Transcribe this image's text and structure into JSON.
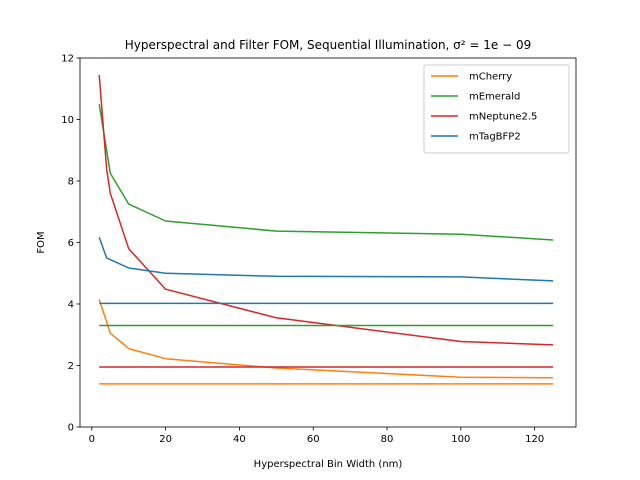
{
  "chart_data": {
    "type": "line",
    "title": "Hyperspectral and Filter FOM, Sequential Illumination, σ² = 1e − 09",
    "xlabel": "Hyperspectral Bin Width (nm)",
    "ylabel": "FOM",
    "xlim": [
      -3.2,
      131.2
    ],
    "ylim": [
      0,
      12
    ],
    "xticks": [
      0,
      20,
      40,
      60,
      80,
      100,
      120
    ],
    "yticks": [
      0,
      2,
      4,
      6,
      8,
      10,
      12
    ],
    "grid": false,
    "legend_position": "top-right",
    "colors": {
      "mCherry": "#ff7f0e",
      "mEmerald": "#2ca02c",
      "mNeptune2.5": "#d62728",
      "mTagBFP2": "#1f77b4"
    },
    "series": [
      {
        "name": "mCherry",
        "color": "#ff7f0e",
        "legend": true,
        "x": [
          2,
          5,
          10,
          20,
          50,
          100,
          125
        ],
        "y": [
          4.15,
          3.05,
          2.55,
          2.22,
          1.92,
          1.62,
          1.6
        ]
      },
      {
        "name": "mEmerald",
        "color": "#2ca02c",
        "legend": true,
        "x": [
          2,
          5,
          10,
          20,
          50,
          100,
          125
        ],
        "y": [
          10.5,
          8.25,
          7.25,
          6.7,
          6.37,
          6.27,
          6.08
        ]
      },
      {
        "name": "mNeptune2.5",
        "color": "#d62728",
        "legend": true,
        "x": [
          2,
          4,
          5,
          10,
          20,
          50,
          100,
          125
        ],
        "y": [
          11.45,
          8.4,
          7.6,
          5.8,
          4.48,
          3.55,
          2.78,
          2.67
        ]
      },
      {
        "name": "mTagBFP2",
        "color": "#1f77b4",
        "legend": true,
        "x": [
          2,
          4,
          10,
          20,
          50,
          100,
          125
        ],
        "y": [
          6.17,
          5.5,
          5.17,
          5.0,
          4.9,
          4.88,
          4.75
        ]
      },
      {
        "name": "",
        "color": "#ff7f0e",
        "legend": false,
        "x": [
          2,
          125
        ],
        "y": [
          1.4,
          1.4
        ]
      },
      {
        "name": "",
        "color": "#2ca02c",
        "legend": false,
        "x": [
          2,
          125
        ],
        "y": [
          3.3,
          3.3
        ]
      },
      {
        "name": "",
        "color": "#d62728",
        "legend": false,
        "x": [
          2,
          125
        ],
        "y": [
          1.95,
          1.95
        ]
      },
      {
        "name": "",
        "color": "#1f77b4",
        "legend": false,
        "x": [
          2,
          125
        ],
        "y": [
          4.02,
          4.02
        ]
      }
    ]
  }
}
